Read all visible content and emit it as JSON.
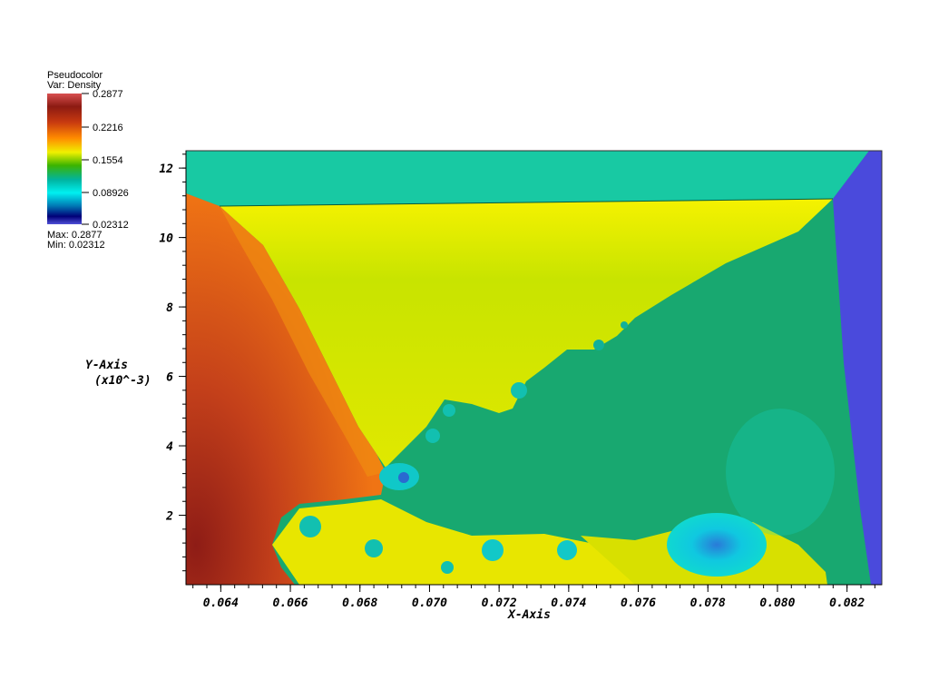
{
  "legend": {
    "plot_type": "Pseudocolor",
    "variable": "Var: Density",
    "tick_labels": [
      "0.2877",
      "0.2216",
      "0.1554",
      "0.08926",
      "0.02312"
    ],
    "max_text": "Max: 0.2877",
    "min_text": "Min: 0.02312"
  },
  "colors": {
    "post_shock_red": "#b8371c",
    "orange": "#e86a10",
    "yellow": "#e6f000",
    "green": "#18a870",
    "teal_top": "#18c9a3",
    "blue_boundary": "#4a4adc",
    "cyan": "#10d8d0"
  },
  "axes": {
    "x_title": "X-Axis",
    "y_title_line1": "Y-Axis",
    "y_title_line2": "(x10^-3)",
    "x_tick_labels": [
      "0.064",
      "0.066",
      "0.068",
      "0.070",
      "0.072",
      "0.074",
      "0.076",
      "0.078",
      "0.080",
      "0.082"
    ],
    "y_tick_labels": [
      "2",
      "4",
      "6",
      "8",
      "10",
      "12"
    ],
    "x_range": [
      0.063,
      0.083
    ],
    "y_range": [
      0,
      12.5
    ]
  }
}
